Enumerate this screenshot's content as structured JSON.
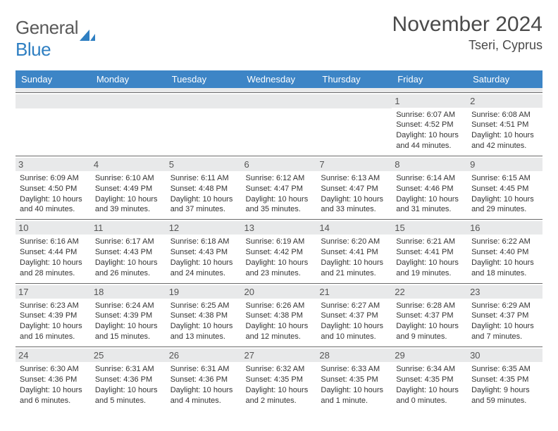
{
  "logo": {
    "gray": "General",
    "blue": "Blue",
    "icon_color": "#2f7fc2"
  },
  "title": "November 2024",
  "location": "Tseri, Cyprus",
  "header_bg": "#3d85c6",
  "dow": [
    "Sunday",
    "Monday",
    "Tuesday",
    "Wednesday",
    "Thursday",
    "Friday",
    "Saturday"
  ],
  "weeks": [
    [
      null,
      null,
      null,
      null,
      null,
      {
        "n": "1",
        "sr": "6:07 AM",
        "ss": "4:52 PM",
        "dl": "10 hours and 44 minutes."
      },
      {
        "n": "2",
        "sr": "6:08 AM",
        "ss": "4:51 PM",
        "dl": "10 hours and 42 minutes."
      }
    ],
    [
      {
        "n": "3",
        "sr": "6:09 AM",
        "ss": "4:50 PM",
        "dl": "10 hours and 40 minutes."
      },
      {
        "n": "4",
        "sr": "6:10 AM",
        "ss": "4:49 PM",
        "dl": "10 hours and 39 minutes."
      },
      {
        "n": "5",
        "sr": "6:11 AM",
        "ss": "4:48 PM",
        "dl": "10 hours and 37 minutes."
      },
      {
        "n": "6",
        "sr": "6:12 AM",
        "ss": "4:47 PM",
        "dl": "10 hours and 35 minutes."
      },
      {
        "n": "7",
        "sr": "6:13 AM",
        "ss": "4:47 PM",
        "dl": "10 hours and 33 minutes."
      },
      {
        "n": "8",
        "sr": "6:14 AM",
        "ss": "4:46 PM",
        "dl": "10 hours and 31 minutes."
      },
      {
        "n": "9",
        "sr": "6:15 AM",
        "ss": "4:45 PM",
        "dl": "10 hours and 29 minutes."
      }
    ],
    [
      {
        "n": "10",
        "sr": "6:16 AM",
        "ss": "4:44 PM",
        "dl": "10 hours and 28 minutes."
      },
      {
        "n": "11",
        "sr": "6:17 AM",
        "ss": "4:43 PM",
        "dl": "10 hours and 26 minutes."
      },
      {
        "n": "12",
        "sr": "6:18 AM",
        "ss": "4:43 PM",
        "dl": "10 hours and 24 minutes."
      },
      {
        "n": "13",
        "sr": "6:19 AM",
        "ss": "4:42 PM",
        "dl": "10 hours and 23 minutes."
      },
      {
        "n": "14",
        "sr": "6:20 AM",
        "ss": "4:41 PM",
        "dl": "10 hours and 21 minutes."
      },
      {
        "n": "15",
        "sr": "6:21 AM",
        "ss": "4:41 PM",
        "dl": "10 hours and 19 minutes."
      },
      {
        "n": "16",
        "sr": "6:22 AM",
        "ss": "4:40 PM",
        "dl": "10 hours and 18 minutes."
      }
    ],
    [
      {
        "n": "17",
        "sr": "6:23 AM",
        "ss": "4:39 PM",
        "dl": "10 hours and 16 minutes."
      },
      {
        "n": "18",
        "sr": "6:24 AM",
        "ss": "4:39 PM",
        "dl": "10 hours and 15 minutes."
      },
      {
        "n": "19",
        "sr": "6:25 AM",
        "ss": "4:38 PM",
        "dl": "10 hours and 13 minutes."
      },
      {
        "n": "20",
        "sr": "6:26 AM",
        "ss": "4:38 PM",
        "dl": "10 hours and 12 minutes."
      },
      {
        "n": "21",
        "sr": "6:27 AM",
        "ss": "4:37 PM",
        "dl": "10 hours and 10 minutes."
      },
      {
        "n": "22",
        "sr": "6:28 AM",
        "ss": "4:37 PM",
        "dl": "10 hours and 9 minutes."
      },
      {
        "n": "23",
        "sr": "6:29 AM",
        "ss": "4:37 PM",
        "dl": "10 hours and 7 minutes."
      }
    ],
    [
      {
        "n": "24",
        "sr": "6:30 AM",
        "ss": "4:36 PM",
        "dl": "10 hours and 6 minutes."
      },
      {
        "n": "25",
        "sr": "6:31 AM",
        "ss": "4:36 PM",
        "dl": "10 hours and 5 minutes."
      },
      {
        "n": "26",
        "sr": "6:31 AM",
        "ss": "4:36 PM",
        "dl": "10 hours and 4 minutes."
      },
      {
        "n": "27",
        "sr": "6:32 AM",
        "ss": "4:35 PM",
        "dl": "10 hours and 2 minutes."
      },
      {
        "n": "28",
        "sr": "6:33 AM",
        "ss": "4:35 PM",
        "dl": "10 hours and 1 minute."
      },
      {
        "n": "29",
        "sr": "6:34 AM",
        "ss": "4:35 PM",
        "dl": "10 hours and 0 minutes."
      },
      {
        "n": "30",
        "sr": "6:35 AM",
        "ss": "4:35 PM",
        "dl": "9 hours and 59 minutes."
      }
    ]
  ],
  "labels": {
    "sunrise": "Sunrise: ",
    "sunset": "Sunset: ",
    "daylight": "Daylight: "
  }
}
